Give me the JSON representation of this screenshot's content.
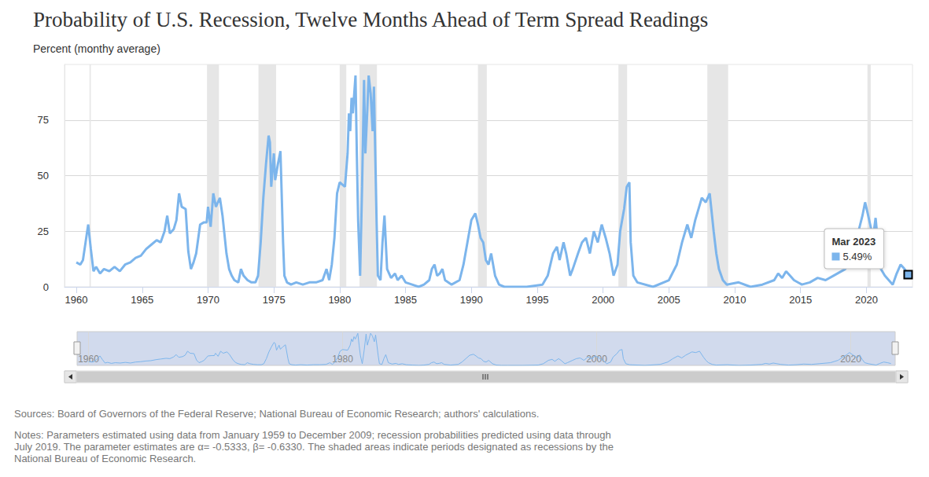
{
  "chart_data": {
    "type": "line",
    "title": "Probability of U.S. Recession, Twelve Months Ahead of Term Spread Readings",
    "subtitle": "Percent (monthy average)",
    "sources": "Sources: Board of Governors of the Federal Reserve; National Bureau of Economic Research; authors' calculations.",
    "notes": [
      "Notes: Parameters estimated using data from January 1959 to December 2009; recession probabilities predicted using data through",
      "July 2019. The parameter estimates are α= -0.5333, β= -0.6330. The shaded areas indicate periods designated as recessions by the",
      "National Bureau of Economic Research."
    ],
    "color": "#7cb5ec",
    "grid": true,
    "xlim": [
      1959.1,
      2023.5
    ],
    "xticks": [
      1960,
      1965,
      1970,
      1975,
      1980,
      1985,
      1990,
      1995,
      2000,
      2005,
      2010,
      2015,
      2020
    ],
    "ylim": [
      0,
      100
    ],
    "yticks": [
      0,
      25,
      50,
      75
    ],
    "x": [
      1960.0,
      1960.3,
      1960.5,
      1960.7,
      1960.9,
      1961.1,
      1961.3,
      1961.5,
      1961.8,
      1962.1,
      1962.5,
      1962.9,
      1963.3,
      1963.7,
      1964.1,
      1964.5,
      1964.9,
      1965.3,
      1965.7,
      1966.1,
      1966.4,
      1966.7,
      1966.9,
      1967.1,
      1967.4,
      1967.6,
      1967.8,
      1968.0,
      1968.3,
      1968.5,
      1968.7,
      1968.9,
      1969.1,
      1969.4,
      1969.7,
      1969.9,
      1970.0,
      1970.2,
      1970.4,
      1970.6,
      1970.9,
      1971.1,
      1971.4,
      1971.6,
      1971.8,
      1972.0,
      1972.3,
      1972.5,
      1972.7,
      1973.0,
      1973.3,
      1973.6,
      1973.8,
      1974.0,
      1974.2,
      1974.4,
      1974.6,
      1974.7,
      1974.8,
      1975.0,
      1975.1,
      1975.3,
      1975.5,
      1975.7,
      1975.8,
      1976.0,
      1976.3,
      1976.7,
      1977.2,
      1977.7,
      1978.2,
      1978.7,
      1979.0,
      1979.2,
      1979.4,
      1979.6,
      1979.8,
      1980.0,
      1980.2,
      1980.4,
      1980.6,
      1980.7,
      1980.8,
      1980.9,
      1981.0,
      1981.2,
      1981.3,
      1981.4,
      1981.55,
      1981.7,
      1981.85,
      1981.95,
      1982.1,
      1982.2,
      1982.35,
      1982.5,
      1982.6,
      1982.8,
      1982.9,
      1983.1,
      1983.25,
      1983.4,
      1983.6,
      1983.9,
      1984.2,
      1984.4,
      1984.7,
      1985.0,
      1985.5,
      1986.0,
      1986.4,
      1986.8,
      1987.0,
      1987.2,
      1987.4,
      1987.6,
      1987.8,
      1988.0,
      1988.5,
      1989.1,
      1989.4,
      1989.7,
      1990.0,
      1990.3,
      1990.5,
      1990.7,
      1990.9,
      1991.1,
      1991.3,
      1991.5,
      1991.8,
      1992.1,
      1992.5,
      1993.0,
      1994.2,
      1995.4,
      1995.8,
      1996.2,
      1996.5,
      1996.7,
      1997.0,
      1997.2,
      1997.5,
      1997.7,
      1998.1,
      1998.4,
      1998.7,
      1999.0,
      1999.3,
      1999.6,
      1999.9,
      2000.2,
      2000.5,
      2000.8,
      2001.1,
      2001.3,
      2001.6,
      2001.8,
      2002.0,
      2002.1,
      2002.3,
      2002.6,
      2003.8,
      2005.0,
      2005.6,
      2006.0,
      2006.4,
      2006.7,
      2007.0,
      2007.5,
      2007.8,
      2008.1,
      2008.4,
      2008.6,
      2008.8,
      2009.1,
      2009.4,
      2010.3,
      2011.2,
      2012.1,
      2013.0,
      2013.3,
      2013.6,
      2013.9,
      2014.2,
      2014.5,
      2015.1,
      2015.7,
      2016.3,
      2016.9,
      2017.5,
      2018.4,
      2019.0,
      2019.4,
      2019.7,
      2019.9,
      2020.1,
      2020.4,
      2020.5,
      2020.7,
      2020.9,
      2021.1,
      2021.4,
      2021.7,
      2022.0,
      2022.3,
      2022.6,
      2022.9,
      2023.17
    ],
    "values": [
      11,
      10,
      12,
      20,
      28,
      17,
      7,
      9,
      6,
      8,
      7,
      9,
      7,
      10,
      11,
      13,
      14,
      17,
      19,
      21,
      20,
      25,
      32,
      24,
      26,
      30,
      42,
      36,
      35,
      16,
      8,
      11,
      15,
      28,
      29,
      29,
      36,
      27,
      42,
      36,
      40,
      32,
      15,
      8,
      5,
      3,
      2,
      8,
      5,
      3,
      2,
      2,
      5,
      20,
      40,
      55,
      68,
      65,
      45,
      60,
      48,
      55,
      61,
      20,
      5,
      2,
      1,
      2,
      1,
      2,
      2,
      3,
      8,
      3,
      10,
      22,
      42,
      47,
      46,
      45,
      60,
      78,
      70,
      85,
      78,
      95,
      60,
      30,
      5,
      45,
      93,
      60,
      80,
      95,
      87,
      70,
      90,
      30,
      5,
      3,
      20,
      32,
      8,
      4,
      6,
      3,
      5,
      2,
      1,
      0,
      1,
      3,
      8,
      10,
      5,
      6,
      8,
      3,
      1,
      3,
      10,
      20,
      30,
      33,
      28,
      22,
      20,
      12,
      10,
      15,
      5,
      1,
      0,
      0,
      0,
      1,
      5,
      15,
      18,
      12,
      20,
      15,
      5,
      8,
      15,
      20,
      22,
      15,
      25,
      20,
      28,
      22,
      15,
      5,
      10,
      25,
      35,
      45,
      47,
      20,
      5,
      2,
      0,
      3,
      10,
      20,
      28,
      22,
      30,
      40,
      38,
      42,
      25,
      15,
      8,
      3,
      1,
      2,
      0,
      1,
      3,
      6,
      4,
      7,
      5,
      3,
      1,
      2,
      4,
      3,
      5,
      8,
      15,
      25,
      32,
      38,
      33,
      25,
      22,
      31,
      18,
      8,
      5,
      3,
      1,
      6,
      10,
      8,
      5.49
    ],
    "recessions": [
      [
        1961.0,
        1961.1
      ],
      [
        1969.92,
        1970.83
      ],
      [
        1973.83,
        1975.17
      ],
      [
        1980.0,
        1980.5
      ],
      [
        1981.5,
        1982.83
      ],
      [
        1990.5,
        1991.17
      ],
      [
        2001.17,
        2001.83
      ],
      [
        2007.92,
        2009.5
      ],
      [
        2020.08,
        2020.33
      ]
    ],
    "annotation": {
      "x": 2023.17,
      "y": 5.49,
      "label": "Mar 2023",
      "value_label": "5.49%"
    },
    "navigator": {
      "xticks": [
        1960,
        1980,
        2000,
        2020
      ]
    }
  }
}
